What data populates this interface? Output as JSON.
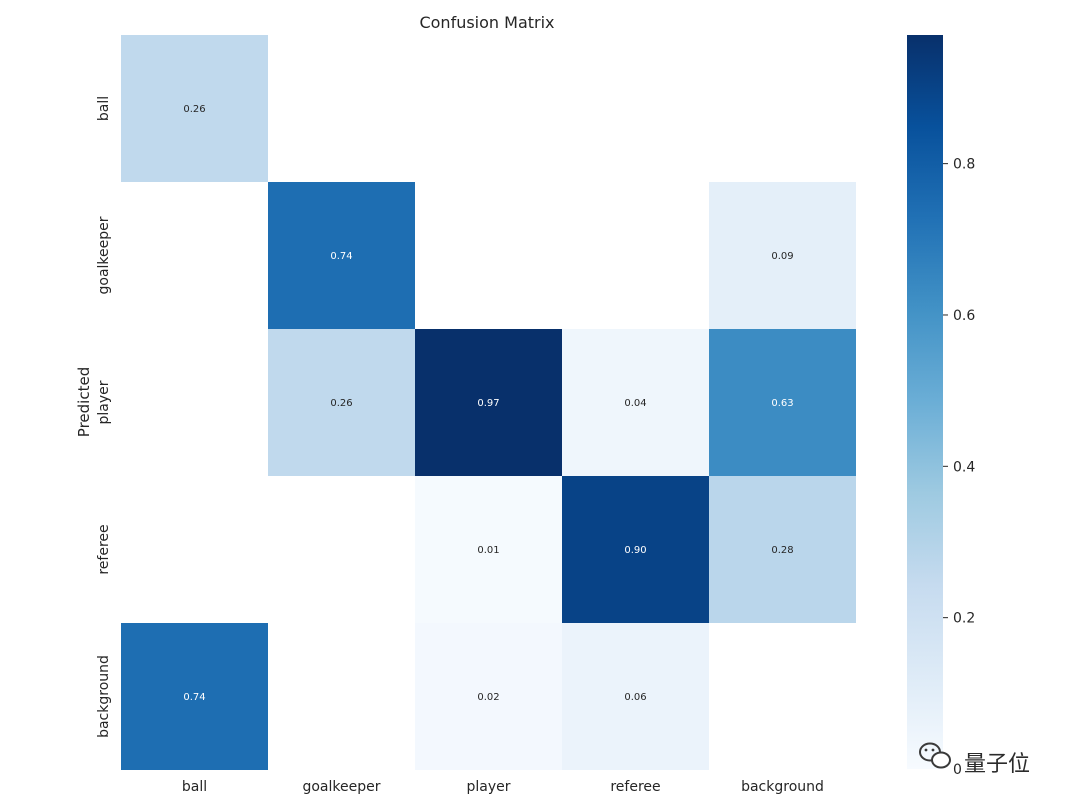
{
  "chart_data": {
    "type": "heatmap",
    "title": "Confusion Matrix",
    "xlabel": "",
    "ylabel": "Predicted",
    "x_categories": [
      "ball",
      "goalkeeper",
      "player",
      "referee",
      "background"
    ],
    "y_categories": [
      "ball",
      "goalkeeper",
      "player",
      "referee",
      "background"
    ],
    "cells": [
      {
        "row": 0,
        "col": 0,
        "value": 0.26,
        "label": "0.26"
      },
      {
        "row": 1,
        "col": 1,
        "value": 0.74,
        "label": "0.74"
      },
      {
        "row": 1,
        "col": 4,
        "value": 0.09,
        "label": "0.09"
      },
      {
        "row": 2,
        "col": 1,
        "value": 0.26,
        "label": "0.26"
      },
      {
        "row": 2,
        "col": 2,
        "value": 0.97,
        "label": "0.97"
      },
      {
        "row": 2,
        "col": 3,
        "value": 0.04,
        "label": "0.04"
      },
      {
        "row": 2,
        "col": 4,
        "value": 0.63,
        "label": "0.63"
      },
      {
        "row": 3,
        "col": 2,
        "value": 0.01,
        "label": "0.01"
      },
      {
        "row": 3,
        "col": 3,
        "value": 0.9,
        "label": "0.90"
      },
      {
        "row": 3,
        "col": 4,
        "value": 0.28,
        "label": "0.28"
      },
      {
        "row": 4,
        "col": 0,
        "value": 0.74,
        "label": "0.74"
      },
      {
        "row": 4,
        "col": 2,
        "value": 0.02,
        "label": "0.02"
      },
      {
        "row": 4,
        "col": 3,
        "value": 0.06,
        "label": "0.06"
      }
    ],
    "colorbar": {
      "cmap": "Blues",
      "range": [
        0,
        0.97
      ],
      "ticks": [
        0.2,
        0.4,
        0.6,
        0.8
      ],
      "tick_labels": [
        "0.2",
        "0.4",
        "0.6",
        "0.8"
      ],
      "bottom_label": "0"
    },
    "grid": false
  },
  "watermark": {
    "text": "量子位",
    "icon": "wechat-icon"
  }
}
